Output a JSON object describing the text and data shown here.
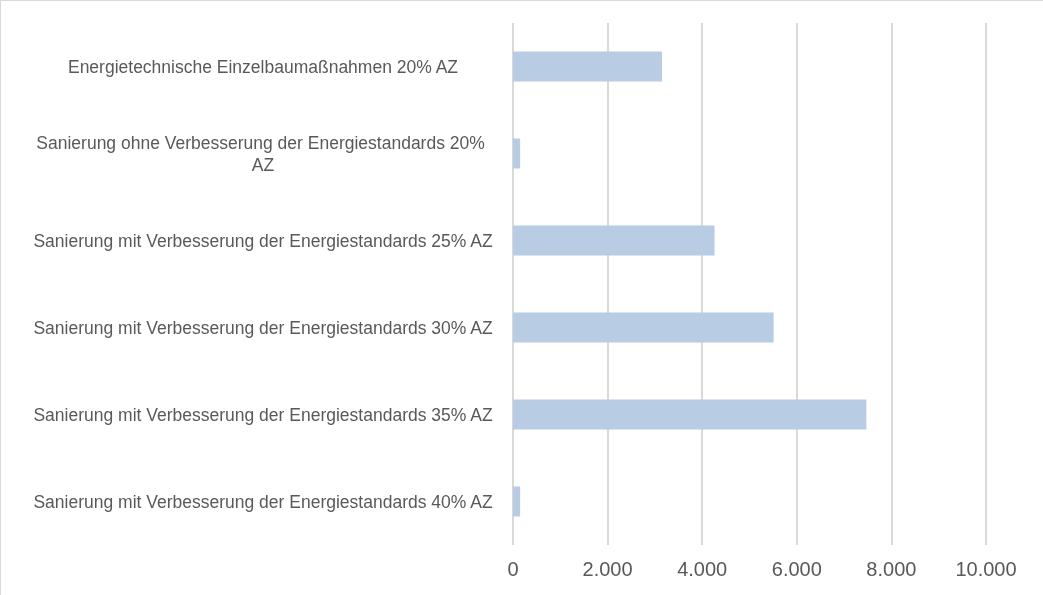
{
  "chart_data": {
    "type": "bar",
    "orientation": "horizontal",
    "categories": [
      "Energietechnische Einzelbaumaßnahmen 20% AZ",
      "Sanierung ohne Verbesserung der Energiestandards 20% AZ",
      "Sanierung mit Verbesserung der Energiestandards 25% AZ",
      "Sanierung mit Verbesserung der Energiestandards 30% AZ",
      "Sanierung mit Verbesserung der Energiestandards 35% AZ",
      "Sanierung mit Verbesserung der Energiestandards 40% AZ"
    ],
    "values": [
      3150,
      150,
      4260,
      5510,
      7470,
      150
    ],
    "color": "#b8cce4",
    "xlim": [
      0,
      10000
    ],
    "xticks": [
      {
        "value": 0,
        "label": "0"
      },
      {
        "value": 2000,
        "label": "2.000"
      },
      {
        "value": 4000,
        "label": "4.000"
      },
      {
        "value": 6000,
        "label": "6.000"
      },
      {
        "value": 8000,
        "label": "8.000"
      },
      {
        "value": 10000,
        "label": "10.000"
      }
    ],
    "grid": "x"
  }
}
